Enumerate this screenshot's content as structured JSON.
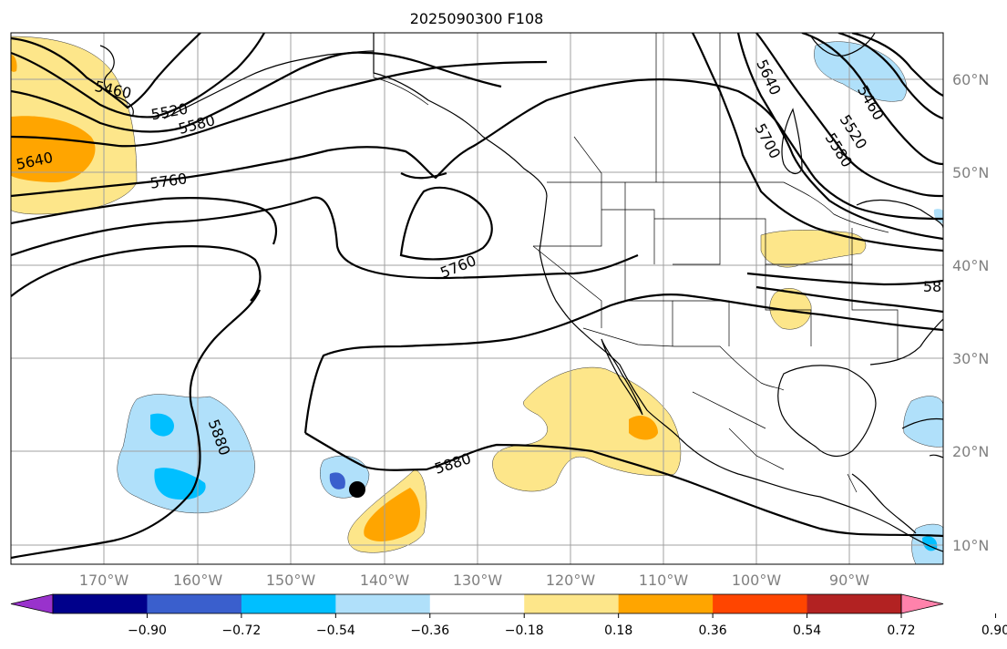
{
  "title": "2025090300 F108",
  "map": {
    "lon_ticks": [
      "170°W",
      "160°W",
      "150°W",
      "140°W",
      "130°W",
      "120°W",
      "110°W",
      "100°W",
      "90°W"
    ],
    "lat_ticks": [
      "60°N",
      "50°N",
      "40°N",
      "30°N",
      "20°N",
      "10°N"
    ],
    "contour_labels": [
      "5460",
      "5520",
      "5580",
      "5640",
      "5760",
      "5760",
      "5880",
      "5880",
      "5640",
      "5700",
      "5460",
      "5520",
      "5580",
      "58"
    ],
    "storm_marker": "black-dot"
  },
  "colorbar": {
    "ticks": [
      "−0.90",
      "−0.72",
      "−0.54",
      "−0.36",
      "−0.18",
      "0.18",
      "0.36",
      "0.54",
      "0.72",
      "0.90"
    ],
    "colors": [
      "#9932cc",
      "#00008b",
      "#3a5fcd",
      "#00bfff",
      "#b0e0fa",
      "#ffffff",
      "#fde68a",
      "#ffa500",
      "#ff4500",
      "#b22222",
      "#ff82ab"
    ]
  }
}
